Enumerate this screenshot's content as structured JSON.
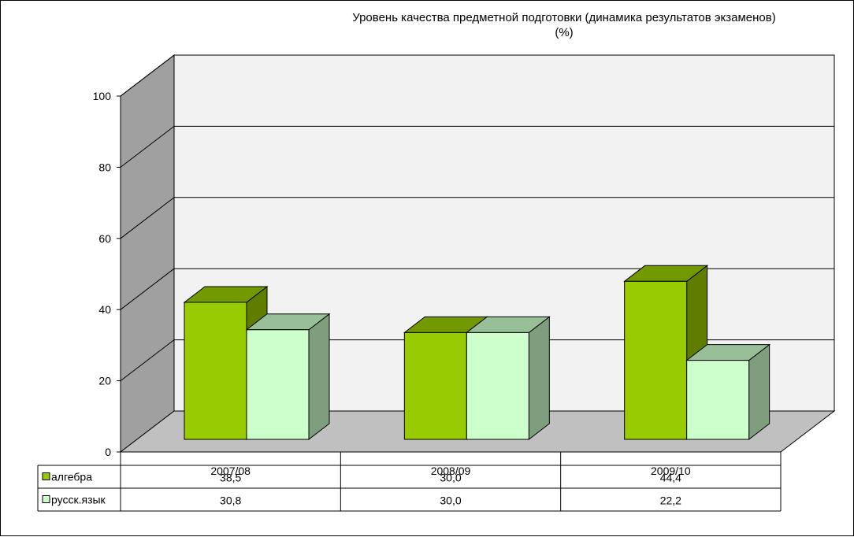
{
  "chart_data": {
    "type": "bar",
    "title": "Уровень качества предметной подготовки (динамика результатов экзаменов)",
    "subtitle": "(%)",
    "categories": [
      "2007/08",
      "2008/09",
      "2009/10"
    ],
    "series": [
      {
        "name": "алгебра",
        "values": [
          38.5,
          30.0,
          44.4
        ],
        "display": [
          "38,5",
          "30,0",
          "44,4"
        ],
        "color": "#99cc00"
      },
      {
        "name": "русск.язык",
        "values": [
          30.8,
          30.0,
          22.2
        ],
        "display": [
          "30,8",
          "30,0",
          "22,2"
        ],
        "color": "#ccffcc"
      }
    ],
    "ylim": [
      0,
      100
    ],
    "yticks": [
      0,
      20,
      40,
      60,
      80,
      100
    ],
    "grid": true,
    "legend": "data-table-left",
    "three_d": true
  }
}
